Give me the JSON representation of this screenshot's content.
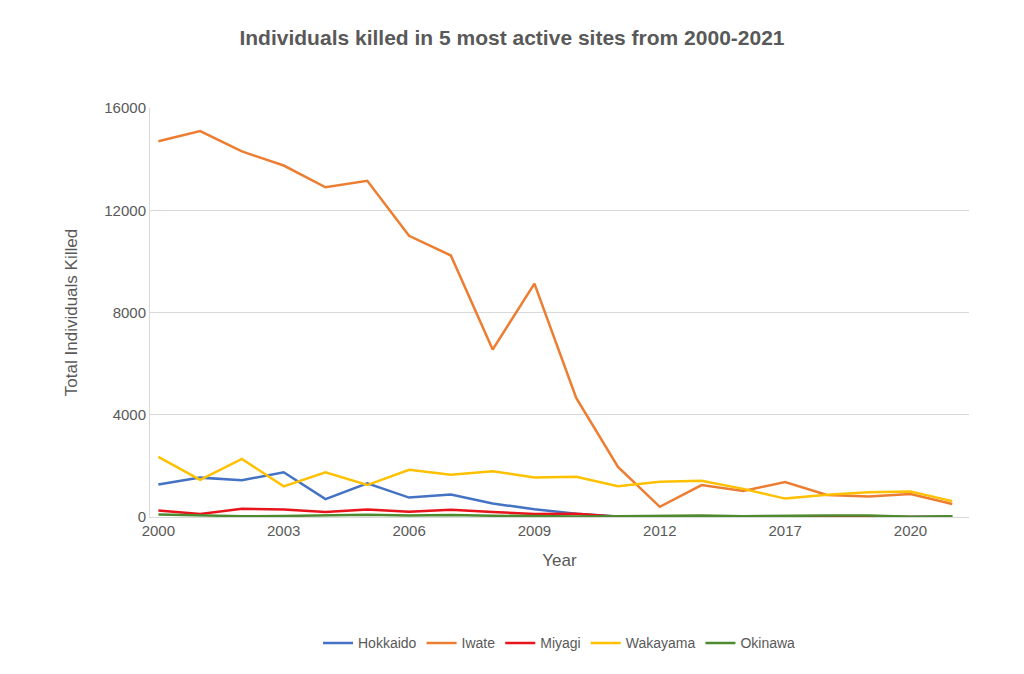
{
  "chart_data": {
    "type": "line",
    "title": "Individuals killed in 5 most active sites from 2000-2021",
    "x_label": "Year",
    "y_label": "Total Individuals Killed",
    "categories": [
      "2000",
      null,
      null,
      "2003",
      null,
      null,
      "2006",
      null,
      null,
      "2009",
      null,
      null,
      "2012",
      null,
      null,
      "2017",
      null,
      null,
      "2020",
      null
    ],
    "series": [
      {
        "name": "Hokkaido",
        "color": "#4472c4",
        "values": [
          1270,
          1540,
          1440,
          1750,
          700,
          1320,
          760,
          880,
          530,
          300,
          130,
          20,
          0,
          20,
          10,
          30,
          30,
          30,
          0,
          20
        ]
      },
      {
        "name": "Iwate",
        "color": "#ed7d31",
        "values": [
          14700,
          15100,
          14300,
          13750,
          12900,
          13150,
          11000,
          10230,
          6550,
          9130,
          4660,
          1960,
          400,
          1250,
          1020,
          1370,
          860,
          800,
          900,
          510
        ]
      },
      {
        "name": "Miyagi",
        "color": "#e8141b",
        "values": [
          250,
          120,
          320,
          290,
          200,
          290,
          210,
          280,
          200,
          120,
          130,
          10,
          0,
          0,
          0,
          0,
          0,
          0,
          0,
          0
        ]
      },
      {
        "name": "Wakayama",
        "color": "#ffc000",
        "values": [
          2350,
          1450,
          2270,
          1200,
          1750,
          1250,
          1850,
          1650,
          1790,
          1550,
          1570,
          1200,
          1380,
          1420,
          1100,
          720,
          870,
          970,
          1000,
          620
        ]
      },
      {
        "name": "Okinawa",
        "color": "#4e8a2e",
        "values": [
          100,
          80,
          30,
          40,
          60,
          90,
          60,
          80,
          50,
          30,
          20,
          30,
          40,
          60,
          30,
          50,
          60,
          60,
          10,
          30
        ]
      }
    ],
    "ylim": [
      0,
      16000
    ],
    "yticks": [
      0,
      4000,
      8000,
      12000,
      16000
    ],
    "grid": true,
    "legend": "bottom",
    "marker": "none",
    "line_style": "solid"
  }
}
